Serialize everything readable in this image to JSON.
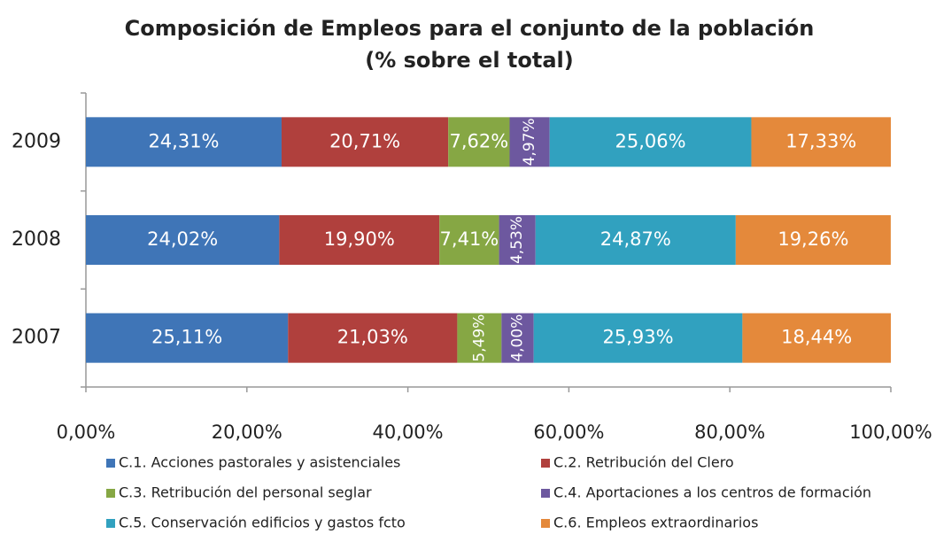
{
  "chart_data": {
    "type": "stacked_barh",
    "title": "Composición de Empleos para el conjunto de la población",
    "subtitle": "(% sobre el total)",
    "categories": [
      "2007",
      "2008",
      "2009"
    ],
    "series": [
      {
        "name": "C.1. Acciones pastorales y asistenciales",
        "color": "#3f75b7",
        "values": [
          25.11,
          24.02,
          24.31
        ],
        "value_labels": [
          "25,11%",
          "24,02%",
          "24,31%"
        ]
      },
      {
        "name": "C.2. Retribución del Clero",
        "color": "#b0403d",
        "values": [
          21.03,
          19.9,
          20.71
        ],
        "value_labels": [
          "21,03%",
          "19,90%",
          "20,71%"
        ]
      },
      {
        "name": "C.3. Retribución del personal seglar",
        "color": "#86a744",
        "values": [
          5.49,
          7.41,
          7.62
        ],
        "value_labels": [
          "5,49%",
          "7,41%",
          "7,62%"
        ]
      },
      {
        "name": "C.4. Aportaciones a los centros de formación",
        "color": "#6d589f",
        "values": [
          4.0,
          4.53,
          4.97
        ],
        "value_labels": [
          "4,00%",
          "4,53%",
          "4,97%"
        ]
      },
      {
        "name": "C.5. Conservación edificios y gastos fcto",
        "color": "#31a1bf",
        "values": [
          25.93,
          24.87,
          25.06
        ],
        "value_labels": [
          "25,93%",
          "24,87%",
          "25,06%"
        ]
      },
      {
        "name": "C.6. Empleos extraordinarios",
        "color": "#e4893b",
        "values": [
          18.44,
          19.26,
          17.33
        ],
        "value_labels": [
          "18,44%",
          "19,26%",
          "17,33%"
        ]
      }
    ],
    "xlim": [
      0,
      100
    ],
    "xticks": [
      {
        "value": 0,
        "label": "0,00%"
      },
      {
        "value": 20,
        "label": "20,00%"
      },
      {
        "value": 40,
        "label": "40,00%"
      },
      {
        "value": 60,
        "label": "60,00%"
      },
      {
        "value": 80,
        "label": "80,00%"
      },
      {
        "value": 100,
        "label": "100,00%"
      }
    ],
    "grid": false,
    "legend": "bottom"
  }
}
